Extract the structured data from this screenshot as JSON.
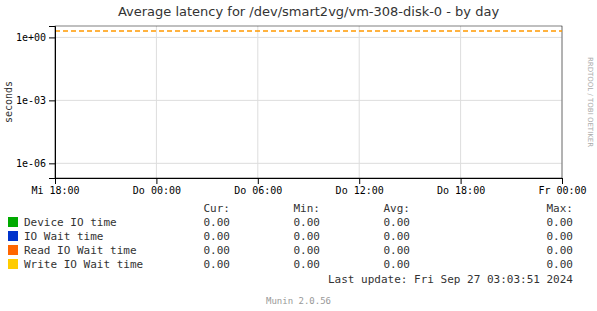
{
  "chart_data": {
    "type": "line",
    "title": "Average latency for /dev/smart2vg/vm-308-disk-0 - by day",
    "y_label": "seconds",
    "log": "y",
    "grid": true,
    "xlim": [
      0,
      30
    ],
    "xticks": [
      {
        "value": 0,
        "label": "Mi 18:00"
      },
      {
        "value": 6,
        "label": "Do 00:00"
      },
      {
        "value": 12,
        "label": "Do 06:00"
      },
      {
        "value": 18,
        "label": "Do 12:00"
      },
      {
        "value": 24,
        "label": "Do 18:00"
      },
      {
        "value": 30,
        "label": "Fr 00:00"
      }
    ],
    "ylim": [
      2e-07,
      3.5
    ],
    "yticks": [
      {
        "value": 1e-06,
        "label": "1e-06"
      },
      {
        "value": 0.001,
        "label": "1e-03"
      },
      {
        "value": 1,
        "label": "1e+00"
      }
    ],
    "reference_lines": [
      {
        "value": 2.0,
        "color": "#ff9900",
        "line_style": "dashed"
      }
    ],
    "series": [
      {
        "name": "Device IO time",
        "color": "#00aa00"
      },
      {
        "name": "IO Wait time",
        "color": "#0033cc"
      },
      {
        "name": "Read IO Wait time",
        "color": "#ff6600"
      },
      {
        "name": "Write IO Wait time",
        "color": "#ffcc00"
      }
    ],
    "table": {
      "columns": [
        "Cur:",
        "Min:",
        "Avg:",
        "Max:"
      ],
      "rows": [
        [
          "0.00",
          "0.00",
          "0.00",
          "0.00"
        ],
        [
          "0.00",
          "0.00",
          "0.00",
          "0.00"
        ],
        [
          "0.00",
          "0.00",
          "0.00",
          "0.00"
        ],
        [
          "0.00",
          "0.00",
          "0.00",
          "0.00"
        ]
      ]
    },
    "annotations": [
      "Last update: Fri Sep 27 03:03:51 2024",
      "Munin 2.0.56",
      "RRDTOOL / TOBI OETIKER"
    ]
  }
}
